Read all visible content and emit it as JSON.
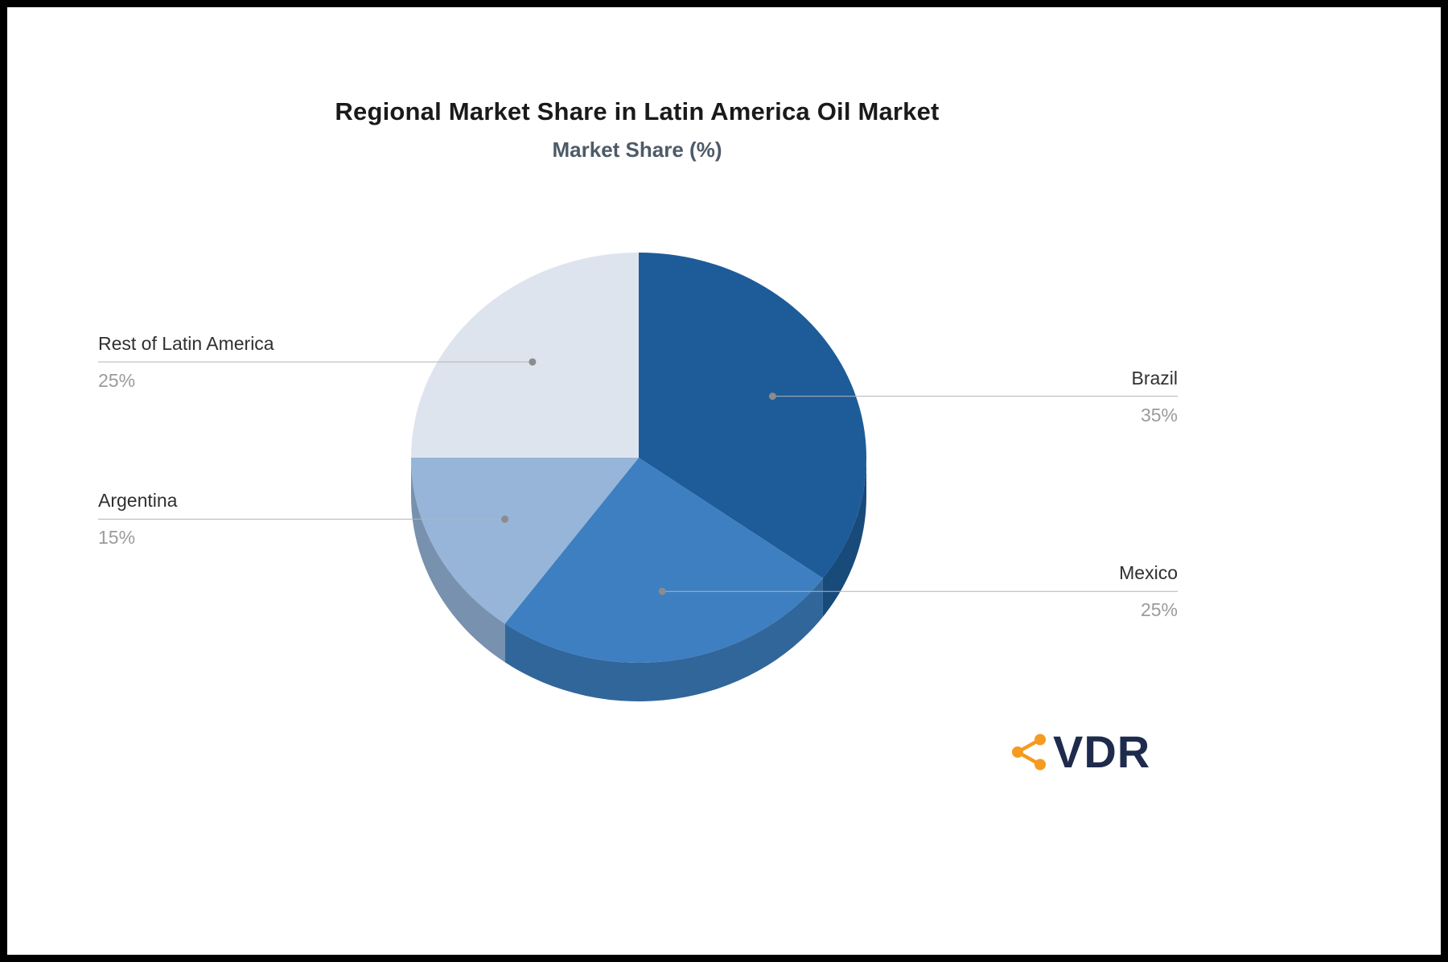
{
  "chart_data": {
    "type": "pie",
    "style": "3d",
    "title": "Regional Market Share in Latin America Oil Market",
    "subtitle": "Market Share (%)",
    "unit": "%",
    "start_angle_deg": -90,
    "direction": "clockwise",
    "legend_position": "none",
    "slices": [
      {
        "label": "Brazil",
        "value": 35,
        "display": "35%",
        "color": "#1E5C99"
      },
      {
        "label": "Mexico",
        "value": 25,
        "display": "25%",
        "color": "#3D7FC1"
      },
      {
        "label": "Argentina",
        "value": 15,
        "display": "15%",
        "color": "#96B5D9"
      },
      {
        "label": "Rest of Latin America",
        "value": 25,
        "display": "25%",
        "color": "#DEE4EE"
      }
    ],
    "labels_style": {
      "name_color": "#303030",
      "value_color": "#9B9B9B",
      "line_color": "#B3B3B3",
      "dot_color": "#8C8C8C"
    },
    "title_color": "#1A1A1A",
    "subtitle_color": "#4E5A68"
  },
  "branding": {
    "logo_text": "VDR",
    "logo_text_color": "#1F2B4D",
    "icon": "share-network-icon",
    "icon_color": "#F49B20"
  },
  "page": {
    "background_color": "#FFFFFF",
    "frame_color": "#000000"
  }
}
